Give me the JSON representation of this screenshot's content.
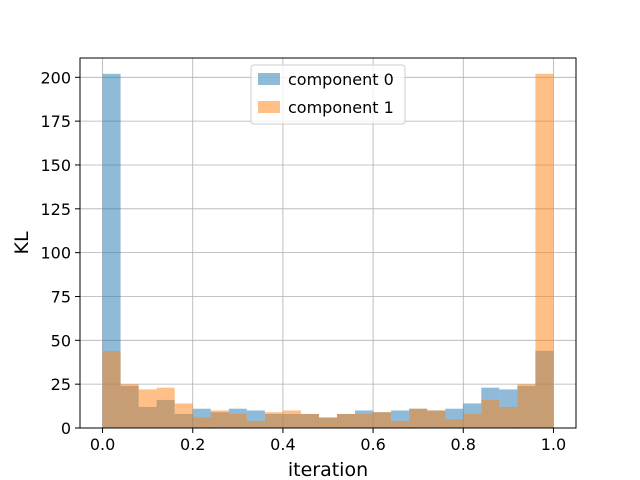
{
  "chart_data": {
    "type": "bar",
    "title": "",
    "xlabel": "iteration",
    "ylabel": "KL",
    "xlim": [
      -0.05,
      1.05
    ],
    "ylim": [
      0,
      211
    ],
    "xticks": [
      "0.0",
      "0.2",
      "0.4",
      "0.6",
      "0.8",
      "1.0"
    ],
    "yticks": [
      "0",
      "25",
      "50",
      "75",
      "100",
      "125",
      "150",
      "175",
      "200"
    ],
    "grid": true,
    "legend_position": "top-center",
    "bin_edges": [
      0.0,
      0.04,
      0.08,
      0.12,
      0.16,
      0.2,
      0.24,
      0.28,
      0.32,
      0.36,
      0.4,
      0.44,
      0.48,
      0.52,
      0.56,
      0.6,
      0.64,
      0.68,
      0.72,
      0.76,
      0.8,
      0.84,
      0.88,
      0.92,
      0.96,
      1.0
    ],
    "series": [
      {
        "name": "component 0",
        "color": "#1f77b4",
        "alpha": 0.5,
        "values": [
          202,
          24,
          12,
          16,
          8,
          11,
          9,
          11,
          10,
          8,
          8,
          8,
          6,
          8,
          10,
          9,
          10,
          11,
          10,
          11,
          14,
          23,
          22,
          24,
          44
        ]
      },
      {
        "name": "component 1",
        "color": "#ff7f0e",
        "alpha": 0.5,
        "values": [
          44,
          25,
          22,
          23,
          14,
          6,
          10,
          8,
          4,
          9,
          10,
          8,
          6,
          8,
          8,
          9,
          4,
          11,
          10,
          5,
          8,
          16,
          12,
          25,
          202
        ]
      }
    ]
  }
}
